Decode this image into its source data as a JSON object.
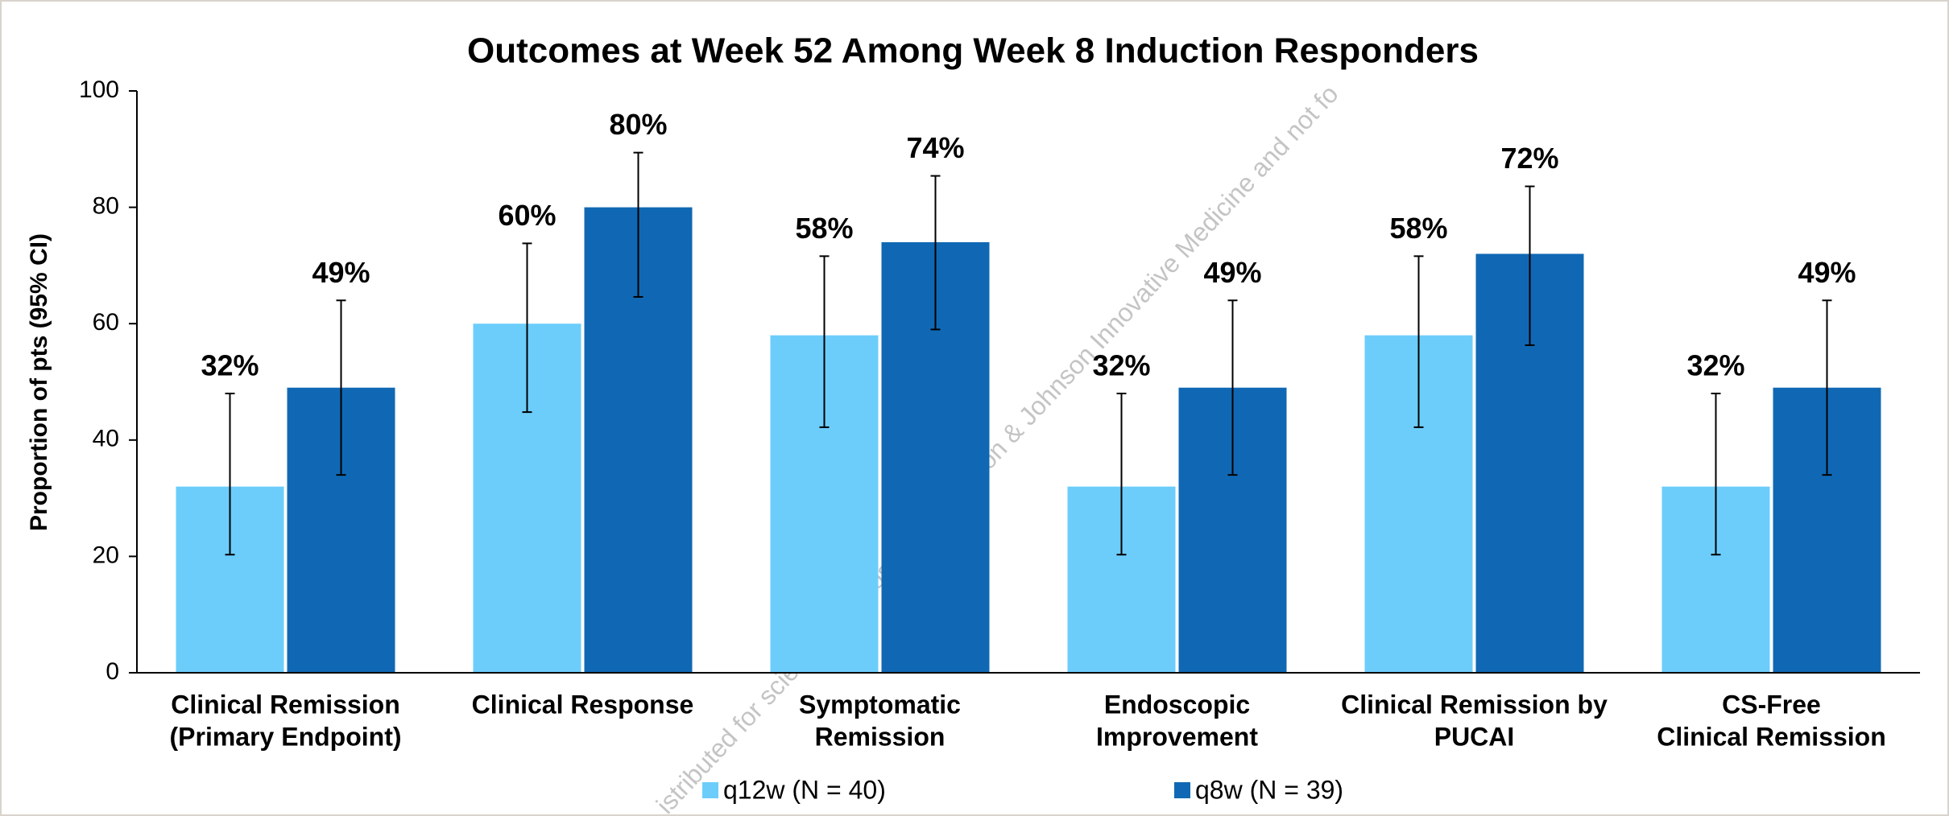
{
  "chart_data": {
    "type": "bar",
    "title": "Outcomes at Week 52 Among Week 8 Induction Responders",
    "y_label": "Proportion of pts (95% CI)",
    "watermark": "istributed for scientific purposes by Johnson & Johnson Innovative Medicine and not fo",
    "categories": [
      [
        "Clinical Remission",
        "(Primary Endpoint)"
      ],
      [
        "Clinical Response"
      ],
      [
        "Symptomatic",
        "Remission"
      ],
      [
        "Endoscopic",
        "Improvement"
      ],
      [
        "Clinical Remission by",
        "PUCAI"
      ],
      [
        "CS-Free",
        "Clinical Remission"
      ]
    ],
    "series": [
      {
        "name": "q12w (N = 40)",
        "color": "#6ccdfb",
        "values": [
          32,
          60,
          58,
          32,
          58,
          32
        ],
        "value_labels": [
          "32%",
          "60%",
          "58%",
          "32%",
          "58%",
          "32%"
        ],
        "ci_low": [
          20.3,
          44.8,
          42.2,
          20.3,
          42.2,
          20.3
        ],
        "ci_high": [
          48,
          73.8,
          71.6,
          48,
          71.6,
          48
        ]
      },
      {
        "name": "q8w (N = 39)",
        "color": "#1068b4",
        "values": [
          49,
          80,
          74,
          49,
          72,
          49
        ],
        "value_labels": [
          "49%",
          "80%",
          "74%",
          "49%",
          "72%",
          "49%"
        ],
        "ci_low": [
          34,
          64.6,
          59,
          34,
          56.3,
          34
        ],
        "ci_high": [
          64,
          89.4,
          85.4,
          64,
          83.6,
          64
        ]
      }
    ],
    "ylim": [
      0,
      100
    ],
    "yticks": [
      0,
      20,
      40,
      60,
      80,
      100
    ],
    "grid": false,
    "legend": "bottom"
  }
}
